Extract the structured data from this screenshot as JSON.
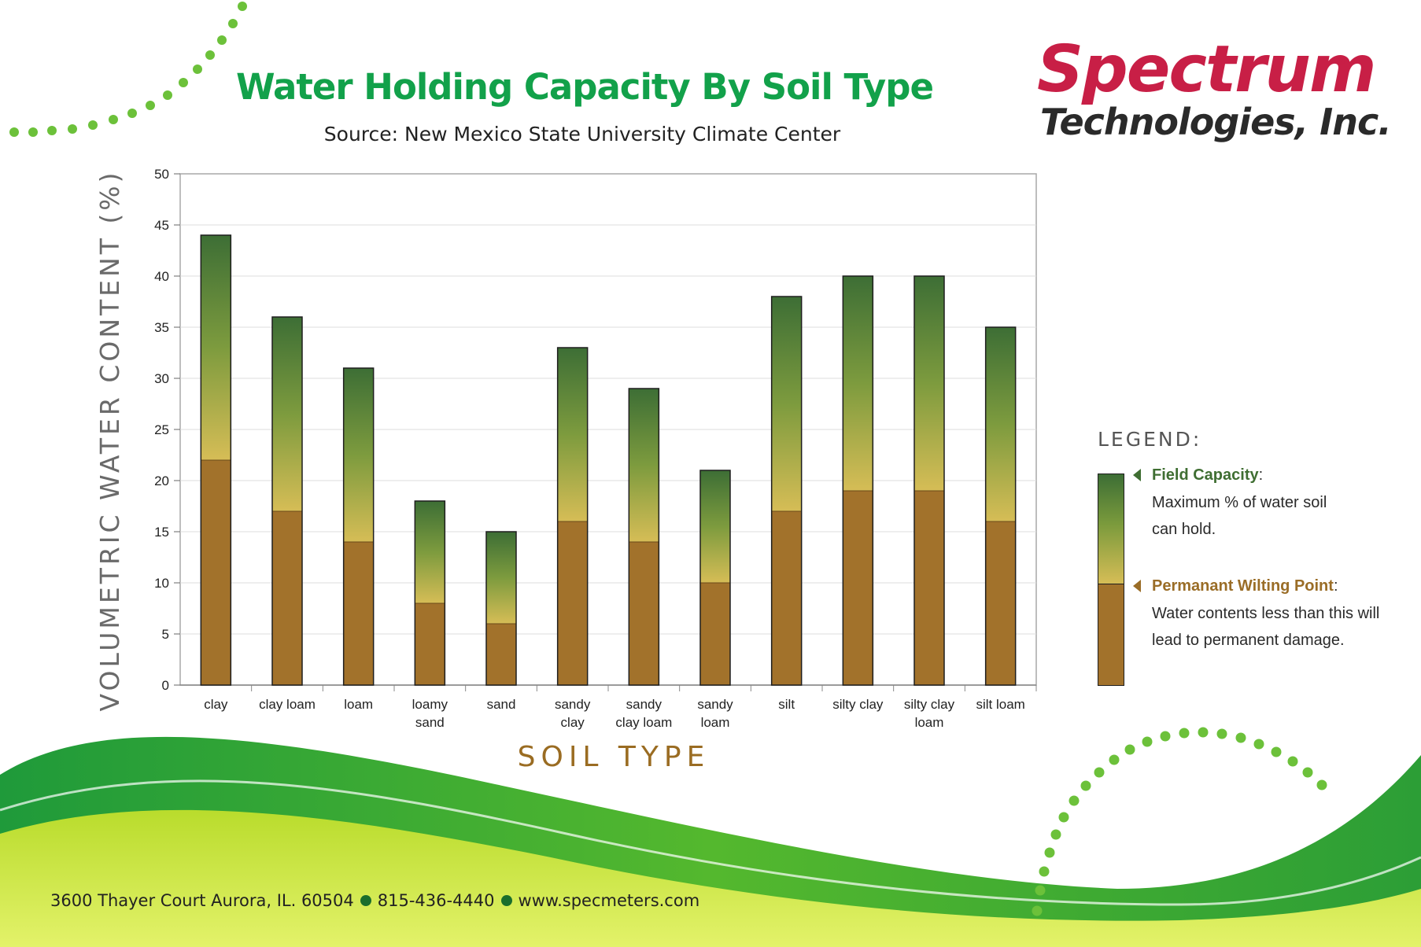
{
  "title": "Water Holding Capacity By Soil Type",
  "subtitle": "Source: New Mexico State University Climate Center",
  "logo": {
    "name": "Spectrum",
    "registered": "®",
    "sub": "Technologies, Inc."
  },
  "colors": {
    "title_green": "#12a14a",
    "logo_red": "#c81f46",
    "field_capacity_top": "#3d6e35",
    "field_capacity_bottom": "#d6bd56",
    "wilting_point": "#a2722b",
    "axis_label_brown": "#9a6c22",
    "swoosh_green": "#3aaa35",
    "dots_green": "#6cc13a"
  },
  "legend": {
    "title": "LEGEND:",
    "field_capacity": {
      "label": "Field Capacity",
      "colon": ":",
      "desc": "Maximum % of water soil can hold."
    },
    "wilting_point": {
      "label": "Permanant Wilting Point",
      "colon": ":",
      "desc": "Water contents less than this will lead to permanent damage."
    }
  },
  "chart_data": {
    "type": "bar",
    "stacked_ranges": true,
    "categories": [
      "clay",
      "clay loam",
      "loam",
      "loamy sand",
      "sand",
      "sandy clay",
      "sandy clay loam",
      "sandy loam",
      "silt",
      "silty clay",
      "silty clay loam",
      "silt loam"
    ],
    "series": [
      {
        "name": "Permanant Wilting Point",
        "values": [
          22,
          17,
          14,
          8,
          6,
          16,
          14,
          10,
          17,
          19,
          19,
          16
        ]
      },
      {
        "name": "Field Capacity",
        "values": [
          44,
          36,
          31,
          18,
          15,
          33,
          29,
          21,
          38,
          40,
          40,
          35
        ]
      }
    ],
    "title": "Water Holding Capacity By Soil Type",
    "xlabel": "SOIL TYPE",
    "ylabel": "VOLUMETRIC WATER CONTENT (%)",
    "ylim": [
      0,
      50
    ],
    "yticks": [
      0,
      5,
      10,
      15,
      20,
      25,
      30,
      35,
      40,
      45,
      50
    ],
    "grid": true,
    "legend_position": "right"
  },
  "footer": {
    "address": "3600 Thayer Court Aurora, IL. 60504",
    "phone": "815-436-4440",
    "website": "www.specmeters.com"
  }
}
